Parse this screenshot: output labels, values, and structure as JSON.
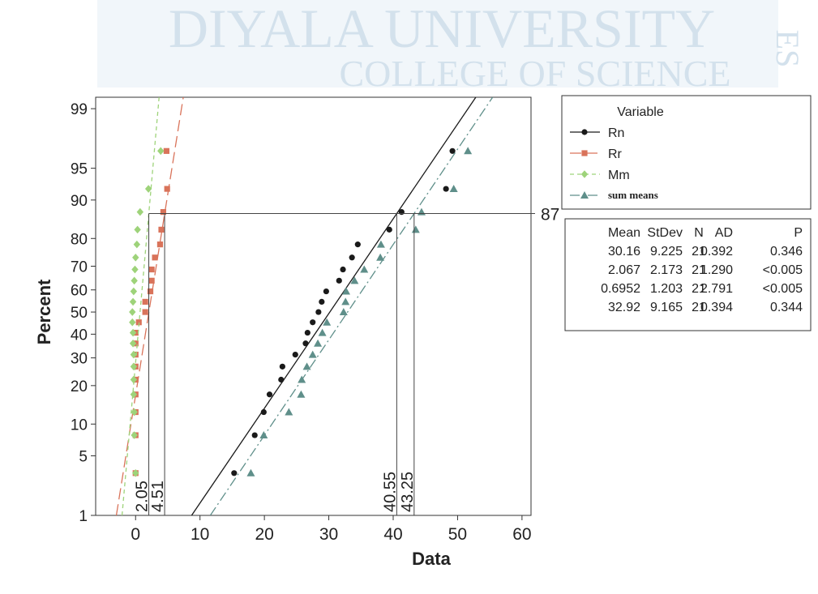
{
  "watermark": {
    "line1": "DIYALA UNIVERSITY",
    "line2": "COLLEGE OF SCIENCE",
    "side": "ES"
  },
  "chart_data": {
    "type": "probability",
    "x_label": "Data",
    "y_label": "Percent",
    "xlim": [
      -6.2,
      61.4
    ],
    "ylim": [
      1,
      99.3
    ],
    "xticks": [
      0,
      10,
      20,
      30,
      40,
      50,
      60
    ],
    "yticks": [
      1,
      5,
      10,
      20,
      30,
      40,
      50,
      60,
      70,
      80,
      90,
      95,
      99
    ],
    "legend_title": "Variable",
    "series": [
      {
        "name": "Rn",
        "color": "#1a1a1a",
        "marker": "circle",
        "dash": "none",
        "x": [
          15.3,
          18.5,
          19.9,
          20.8,
          22.6,
          22.8,
          24.8,
          26.4,
          26.7,
          27.5,
          28.4,
          28.9,
          29.6,
          31.6,
          32.2,
          33.6,
          34.5,
          39.4,
          41.3,
          48.2,
          49.2
        ],
        "values": [
          3.27,
          7.94,
          12.62,
          17.29,
          21.96,
          26.64,
          31.31,
          35.98,
          40.65,
          45.33,
          50,
          54.67,
          59.35,
          64.02,
          68.69,
          73.36,
          78.04,
          82.71,
          87.38,
          92.06,
          96.73
        ]
      },
      {
        "name": "Rr",
        "color": "#d9735a",
        "marker": "square",
        "dash": "14 6",
        "x": [
          0,
          0,
          0,
          0,
          0,
          0,
          0,
          0,
          0,
          0.5,
          1.5,
          1.5,
          2.3,
          2.5,
          2.5,
          3.0,
          3.8,
          4.0,
          4.3,
          4.9,
          4.8
        ],
        "values": [
          3.27,
          7.94,
          12.62,
          17.29,
          21.96,
          26.64,
          31.31,
          35.98,
          40.65,
          45.33,
          50,
          54.67,
          59.35,
          64.02,
          68.69,
          73.36,
          78.04,
          82.71,
          87.38,
          92.06,
          96.73
        ]
      },
      {
        "name": "Mm",
        "color": "#9ed37a",
        "marker": "diamond",
        "dash": "5 4",
        "x": [
          0,
          -0.2,
          -0.2,
          -0.3,
          -0.3,
          -0.3,
          -0.3,
          -0.4,
          -0.4,
          -0.5,
          -0.5,
          -0.4,
          -0.3,
          -0.2,
          -0.1,
          0.0,
          0.2,
          0.3,
          0.7,
          2.0,
          3.9
        ],
        "values": [
          3.27,
          7.94,
          12.62,
          17.29,
          21.96,
          26.64,
          31.31,
          35.98,
          40.65,
          45.33,
          50,
          54.67,
          59.35,
          64.02,
          68.69,
          73.36,
          78.04,
          82.71,
          87.38,
          92.06,
          96.73
        ]
      },
      {
        "name": "sum means",
        "color": "#5f8f8a",
        "marker": "triangle",
        "dash": "12 4 2 4",
        "x": [
          17.9,
          19.9,
          23.8,
          25.7,
          25.8,
          26.6,
          27.5,
          28.3,
          29.0,
          29.7,
          32.3,
          32.6,
          32.7,
          34.0,
          35.5,
          38.0,
          38.1,
          43.5,
          44.4,
          49.4,
          51.6
        ],
        "values": [
          3.27,
          7.94,
          12.62,
          17.29,
          21.96,
          26.64,
          31.31,
          35.98,
          40.65,
          45.33,
          50,
          54.67,
          59.35,
          64.02,
          68.69,
          73.36,
          78.04,
          82.71,
          87.38,
          92.06,
          96.73
        ]
      }
    ],
    "stats": {
      "columns": [
        "Mean",
        "StDev",
        "N",
        "AD",
        "P"
      ],
      "rows": [
        [
          "30.16",
          "9.225",
          "21",
          "0.392",
          "0.346"
        ],
        [
          "2.067",
          "2.173",
          "21",
          "1.290",
          "<0.005"
        ],
        [
          "0.6952",
          "1.203",
          "21",
          "2.791",
          "<0.005"
        ],
        [
          "32.92",
          "9.165",
          "21",
          "0.394",
          "0.344"
        ]
      ]
    },
    "reference": {
      "percent": 87,
      "x": [
        2.05,
        4.51,
        40.55,
        43.25
      ]
    }
  }
}
